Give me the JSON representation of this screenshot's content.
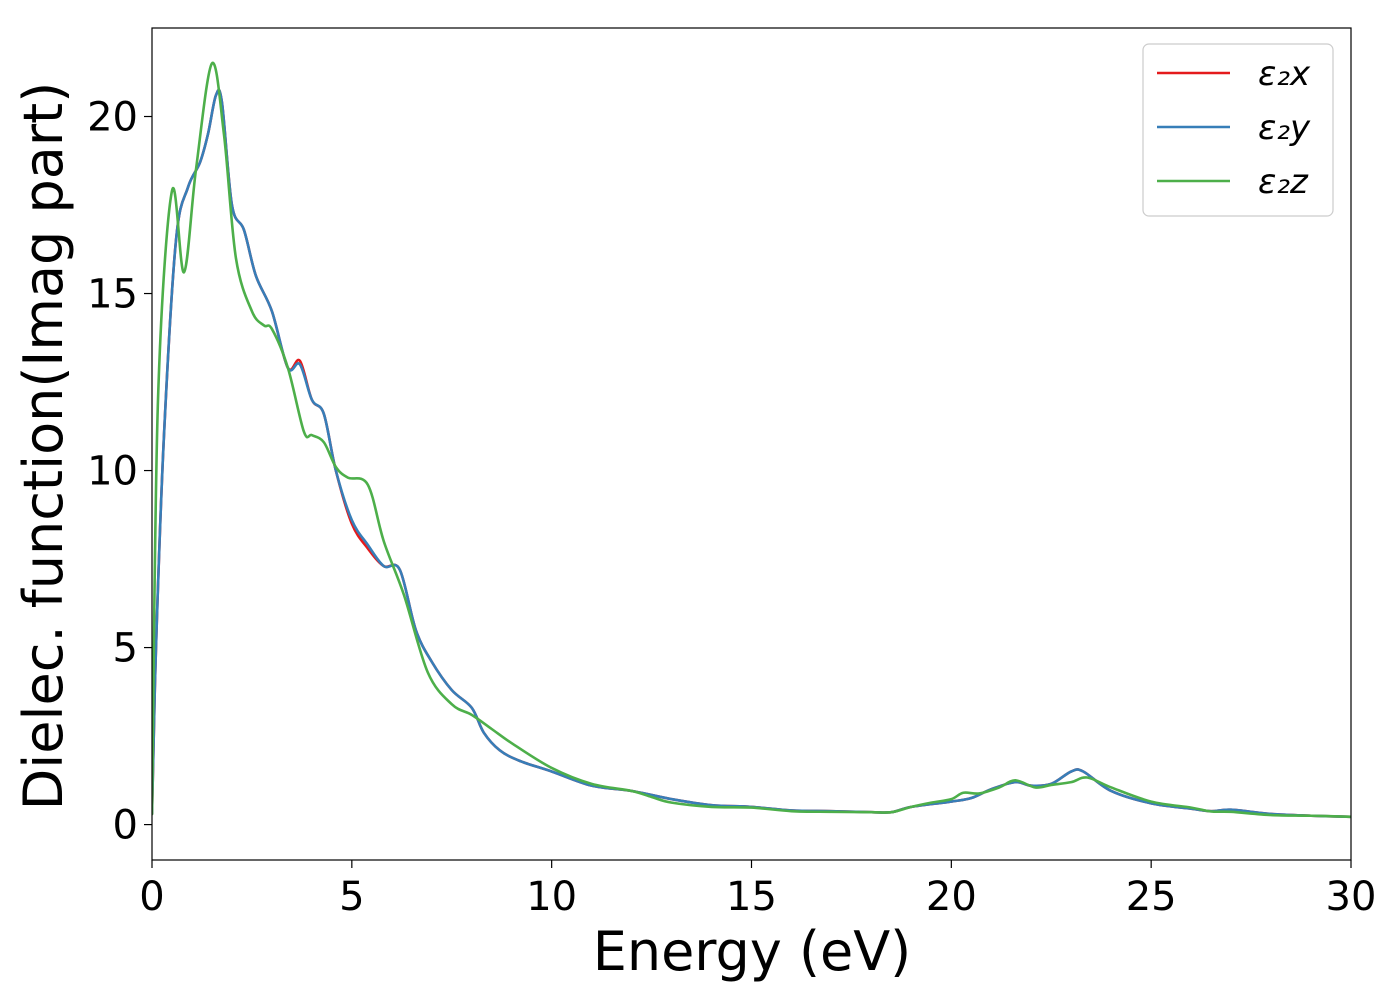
{
  "chart_data": {
    "type": "line",
    "xlabel": "Energy (eV)",
    "ylabel": "Dielec. function(Imag part)",
    "xlim": [
      0,
      30
    ],
    "ylim": [
      -1,
      22.5
    ],
    "xticks": [
      0,
      5,
      10,
      15,
      20,
      25,
      30
    ],
    "yticks": [
      0,
      5,
      10,
      15,
      20
    ],
    "grid": false,
    "legend_position": "top-right",
    "series": [
      {
        "name": "ε₂x",
        "color": "#e41a1c",
        "x": [
          0,
          0.1,
          0.3,
          0.6,
          0.9,
          1.2,
          1.4,
          1.6,
          1.75,
          2.0,
          2.3,
          2.6,
          3.0,
          3.4,
          3.7,
          4.0,
          4.3,
          4.6,
          5.0,
          5.4,
          5.8,
          6.2,
          6.6,
          7.0,
          7.5,
          8.0,
          8.3,
          8.7,
          9.2,
          10.0,
          11.0,
          12.0,
          13.0,
          14.0,
          15.0,
          16.0,
          17.0,
          18.0,
          18.5,
          19.0,
          20.0,
          20.5,
          21.0,
          21.6,
          22.0,
          22.5,
          23.0,
          23.3,
          24.0,
          25.0,
          26.0,
          26.5,
          27.0,
          28.0,
          29.0,
          30.0
        ],
        "y": [
          0.3,
          5.0,
          11.0,
          16.5,
          18.0,
          18.7,
          19.5,
          20.6,
          20.4,
          17.5,
          16.8,
          15.5,
          14.5,
          12.9,
          13.1,
          12.0,
          11.6,
          10.0,
          8.5,
          7.8,
          7.3,
          7.2,
          5.5,
          4.6,
          3.8,
          3.3,
          2.6,
          2.1,
          1.8,
          1.5,
          1.1,
          0.95,
          0.72,
          0.55,
          0.5,
          0.4,
          0.38,
          0.35,
          0.35,
          0.5,
          0.65,
          0.75,
          1.0,
          1.2,
          1.1,
          1.15,
          1.5,
          1.5,
          0.95,
          0.6,
          0.45,
          0.38,
          0.42,
          0.3,
          0.25,
          0.22
        ]
      },
      {
        "name": "ε₂y",
        "color": "#377eb8",
        "x": [
          0,
          0.1,
          0.3,
          0.6,
          0.9,
          1.2,
          1.4,
          1.6,
          1.75,
          2.0,
          2.3,
          2.6,
          3.0,
          3.4,
          3.7,
          4.0,
          4.3,
          4.6,
          5.0,
          5.4,
          5.8,
          6.2,
          6.6,
          7.0,
          7.5,
          8.0,
          8.3,
          8.7,
          9.2,
          10.0,
          11.0,
          12.0,
          13.0,
          14.0,
          15.0,
          16.0,
          17.0,
          18.0,
          18.5,
          19.0,
          20.0,
          20.5,
          21.0,
          21.6,
          22.0,
          22.5,
          23.0,
          23.3,
          24.0,
          25.0,
          26.0,
          26.5,
          27.0,
          28.0,
          29.0,
          30.0
        ],
        "y": [
          0.3,
          5.0,
          11.0,
          16.5,
          18.0,
          18.7,
          19.5,
          20.6,
          20.4,
          17.5,
          16.8,
          15.5,
          14.5,
          12.9,
          13.0,
          12.0,
          11.6,
          10.0,
          8.6,
          7.9,
          7.3,
          7.2,
          5.5,
          4.6,
          3.8,
          3.3,
          2.6,
          2.1,
          1.8,
          1.5,
          1.1,
          0.95,
          0.72,
          0.55,
          0.5,
          0.4,
          0.38,
          0.35,
          0.35,
          0.5,
          0.65,
          0.75,
          1.0,
          1.2,
          1.1,
          1.15,
          1.5,
          1.5,
          0.95,
          0.6,
          0.45,
          0.38,
          0.42,
          0.3,
          0.25,
          0.22
        ]
      },
      {
        "name": "ε₂z",
        "color": "#4daf4a",
        "x": [
          0,
          0.15,
          0.5,
          0.8,
          1.1,
          1.5,
          1.8,
          2.1,
          2.5,
          2.8,
          3.0,
          3.4,
          3.8,
          4.0,
          4.3,
          4.6,
          4.9,
          5.4,
          5.8,
          6.3,
          6.9,
          7.5,
          8.0,
          8.5,
          9.0,
          10.0,
          11.0,
          12.0,
          12.5,
          13.0,
          14.0,
          15.0,
          16.0,
          17.0,
          18.0,
          18.5,
          19.0,
          19.5,
          20.0,
          20.3,
          20.7,
          21.2,
          21.6,
          22.1,
          22.5,
          23.0,
          23.4,
          24.0,
          25.0,
          26.0,
          26.5,
          27.0,
          28.0,
          29.0,
          30.0
        ],
        "y": [
          0.3,
          12.0,
          17.9,
          15.6,
          18.5,
          21.5,
          19.5,
          16.0,
          14.5,
          14.1,
          14.0,
          12.9,
          11.1,
          11.0,
          10.8,
          10.1,
          9.8,
          9.6,
          8.0,
          6.5,
          4.3,
          3.4,
          3.1,
          2.7,
          2.3,
          1.6,
          1.15,
          0.95,
          0.78,
          0.62,
          0.5,
          0.48,
          0.38,
          0.36,
          0.35,
          0.35,
          0.5,
          0.62,
          0.72,
          0.9,
          0.88,
          1.05,
          1.25,
          1.05,
          1.12,
          1.2,
          1.33,
          1.05,
          0.65,
          0.48,
          0.37,
          0.36,
          0.27,
          0.25,
          0.22
        ]
      }
    ]
  }
}
